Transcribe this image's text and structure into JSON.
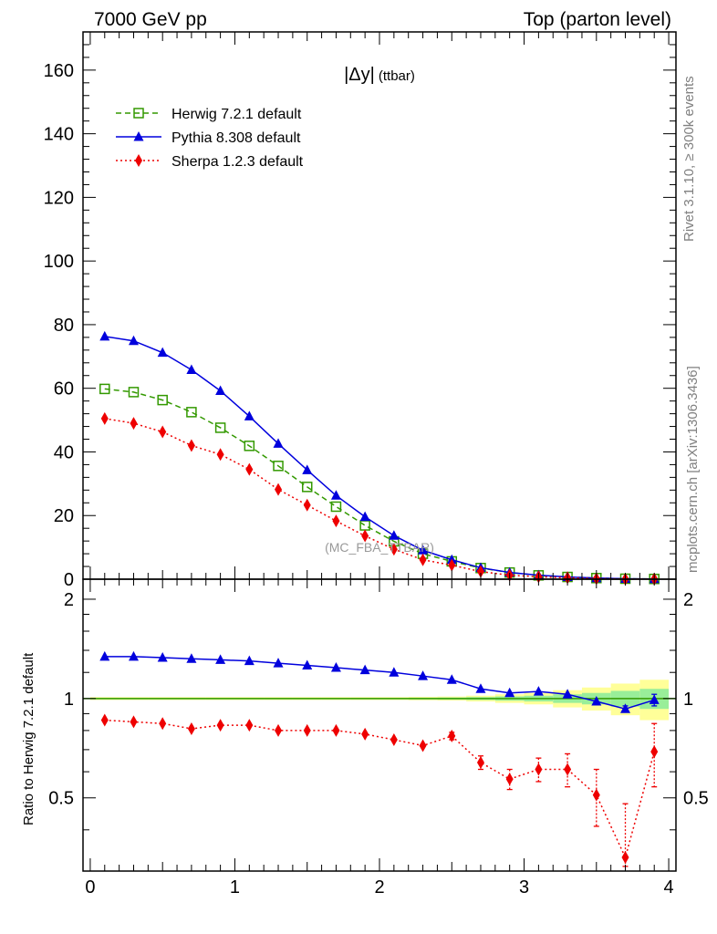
{
  "header": {
    "left": "7000 GeV pp",
    "right": "Top (parton level)"
  },
  "side_labels": {
    "rivet": "Rivet 3.1.10, ≥ 300k events",
    "mcplots": "mcplots.cern.ch [arXiv:1306.3436]"
  },
  "chart_data": [
    {
      "type": "line",
      "title": "|Δy| (ttbar)",
      "title_main": "|Δy|",
      "title_sub": "(ttbar)",
      "watermark": "(MC_FBA_TTBAR)",
      "xlim": [
        -0.05,
        4.05
      ],
      "ylim": [
        0,
        172
      ],
      "grid": false,
      "legend": "top-left",
      "y_ticks": [
        0,
        20,
        40,
        60,
        80,
        100,
        120,
        140,
        160
      ],
      "x": [
        0.1,
        0.3,
        0.5,
        0.7,
        0.9,
        1.1,
        1.3,
        1.5,
        1.7,
        1.9,
        2.1,
        2.3,
        2.5,
        2.7,
        2.9,
        3.1,
        3.3,
        3.5,
        3.7,
        3.9
      ],
      "series": [
        {
          "name": "Herwig 7.2.1 default",
          "color": "#339900",
          "marker": "open-square",
          "line": "dashed",
          "values": [
            59.8,
            58.8,
            56.3,
            52.5,
            47.6,
            41.9,
            35.6,
            29.0,
            22.8,
            16.9,
            11.9,
            8.0,
            5.6,
            3.5,
            2.1,
            1.2,
            0.7,
            0.35,
            0.15,
            0.08
          ]
        },
        {
          "name": "Pythia 8.308 default",
          "color": "#0000dd",
          "marker": "triangle",
          "line": "solid",
          "values": [
            76.3,
            74.9,
            71.2,
            65.8,
            59.2,
            51.2,
            42.6,
            34.3,
            26.3,
            19.6,
            13.7,
            9.1,
            6.1,
            3.6,
            2.1,
            1.25,
            0.7,
            0.35,
            0.14,
            0.08
          ]
        },
        {
          "name": "Sherpa 1.2.3 default",
          "color": "#ee0000",
          "marker": "diamond",
          "line": "dotted",
          "values": [
            50.5,
            49.0,
            46.3,
            42.0,
            39.2,
            34.5,
            28.2,
            23.3,
            18.3,
            13.6,
            9.4,
            6.1,
            4.4,
            2.4,
            1.25,
            0.75,
            0.45,
            0.18,
            0.05,
            0.06
          ]
        }
      ]
    },
    {
      "type": "line",
      "ylabel": "Ratio to Herwig 7.2.1 default",
      "xlim": [
        -0.05,
        4.05
      ],
      "ylim": [
        0.3,
        2.3
      ],
      "grid": false,
      "x_ticks": [
        0,
        1,
        2,
        3,
        4
      ],
      "y_ticks": [
        0.5,
        1,
        2
      ],
      "x": [
        0.1,
        0.3,
        0.5,
        0.7,
        0.9,
        1.1,
        1.3,
        1.5,
        1.7,
        1.9,
        2.1,
        2.3,
        2.5,
        2.7,
        2.9,
        3.1,
        3.3,
        3.5,
        3.7,
        3.9
      ],
      "band_halfwidth": [
        0.005,
        0.005,
        0.005,
        0.005,
        0.005,
        0.005,
        0.005,
        0.005,
        0.005,
        0.005,
        0.005,
        0.006,
        0.007,
        0.01,
        0.015,
        0.02,
        0.03,
        0.04,
        0.055,
        0.07
      ],
      "series": [
        {
          "name": "Pythia 8.308 default",
          "color": "#0000dd",
          "marker": "triangle",
          "line": "solid",
          "values": [
            1.34,
            1.34,
            1.33,
            1.32,
            1.31,
            1.3,
            1.28,
            1.26,
            1.24,
            1.22,
            1.2,
            1.17,
            1.14,
            1.07,
            1.04,
            1.05,
            1.03,
            0.98,
            0.93,
            0.99
          ],
          "errors": [
            0,
            0,
            0,
            0,
            0,
            0,
            0,
            0,
            0,
            0,
            0,
            0,
            0,
            0,
            0,
            0,
            0,
            0,
            0.02,
            0.04
          ]
        },
        {
          "name": "Sherpa 1.2.3 default",
          "color": "#ee0000",
          "marker": "diamond",
          "line": "dotted",
          "values": [
            0.86,
            0.85,
            0.84,
            0.81,
            0.83,
            0.83,
            0.8,
            0.8,
            0.8,
            0.78,
            0.75,
            0.72,
            0.77,
            0.64,
            0.57,
            0.61,
            0.61,
            0.51,
            0.33,
            0.69
          ],
          "errors": [
            0,
            0,
            0,
            0,
            0,
            0,
            0,
            0,
            0,
            0,
            0,
            0,
            0.02,
            0.03,
            0.04,
            0.05,
            0.07,
            0.1,
            0.15,
            0.15
          ]
        }
      ]
    }
  ]
}
